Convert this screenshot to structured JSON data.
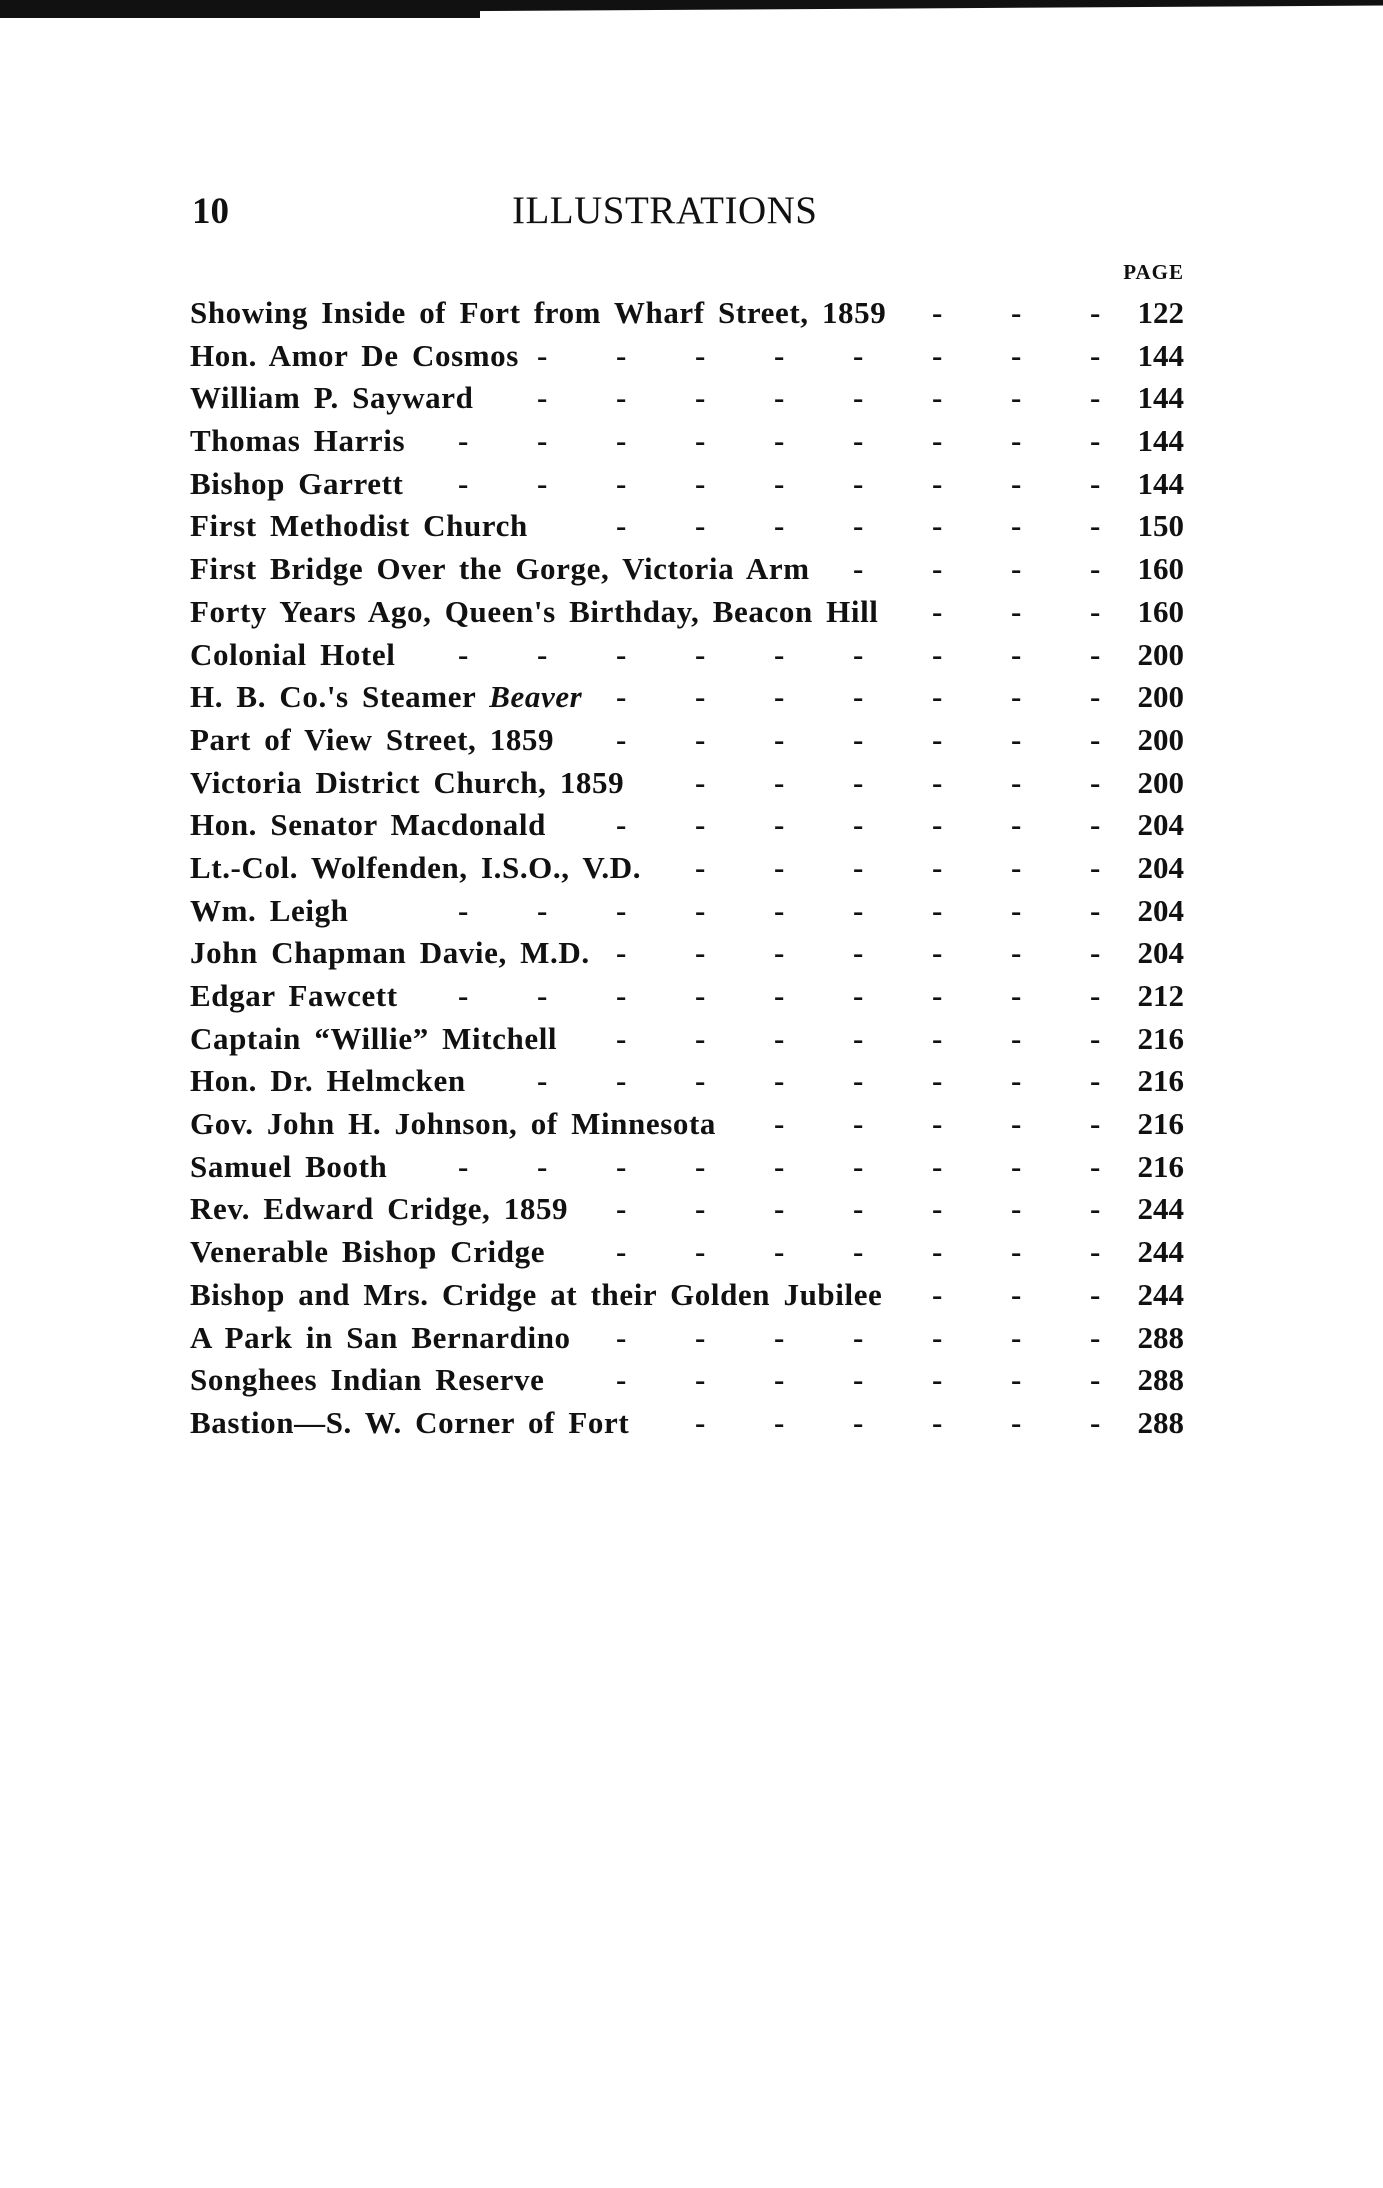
{
  "header": {
    "page_number": "10",
    "title": "ILLUSTRATIONS",
    "column_label": "PAGE"
  },
  "entries": [
    {
      "title": "Showing Inside of Fort from Wharf Street, 1859",
      "page": "122"
    },
    {
      "title": "Hon. Amor De Cosmos",
      "page": "144"
    },
    {
      "title": "William P. Sayward",
      "page": "144"
    },
    {
      "title": "Thomas Harris",
      "page": "144"
    },
    {
      "title": "Bishop Garrett",
      "page": "144"
    },
    {
      "title": "First Methodist Church",
      "page": "150"
    },
    {
      "title": "First Bridge Over the Gorge, Victoria Arm",
      "page": "160"
    },
    {
      "title": "Forty Years Ago, Queen's Birthday, Beacon Hill",
      "page": "160"
    },
    {
      "title": "Colonial Hotel",
      "page": "200"
    },
    {
      "title": "H. B. Co.'s Steamer ",
      "title_italic": "Beaver",
      "page": "200"
    },
    {
      "title": "Part of View Street, 1859",
      "page": "200"
    },
    {
      "title": "Victoria District Church, 1859",
      "page": "200"
    },
    {
      "title": "Hon. Senator Macdonald",
      "page": "204"
    },
    {
      "title": "Lt.-Col. Wolfenden, I.S.O., V.D.",
      "page": "204"
    },
    {
      "title": "Wm. Leigh",
      "page": "204"
    },
    {
      "title": "John Chapman Davie, M.D.",
      "page": "204"
    },
    {
      "title": "Edgar Fawcett",
      "page": "212"
    },
    {
      "title": "Captain “Willie” Mitchell",
      "page": "216"
    },
    {
      "title": "Hon. Dr. Helmcken",
      "page": "216"
    },
    {
      "title": "Gov. John H. Johnson, of Minnesota",
      "page": "216"
    },
    {
      "title": "Samuel Booth",
      "page": "216"
    },
    {
      "title": "Rev. Edward Cridge, 1859",
      "page": "244"
    },
    {
      "title": "Venerable Bishop Cridge",
      "page": "244"
    },
    {
      "title": "Bishop and Mrs. Cridge at their Golden Jubilee",
      "page": "244"
    },
    {
      "title": "A Park in San Bernardino",
      "page": "288"
    },
    {
      "title": "Songhees Indian Reserve",
      "page": "288"
    },
    {
      "title": "Bastion—S. W. Corner of Fort",
      "page": "288"
    }
  ]
}
